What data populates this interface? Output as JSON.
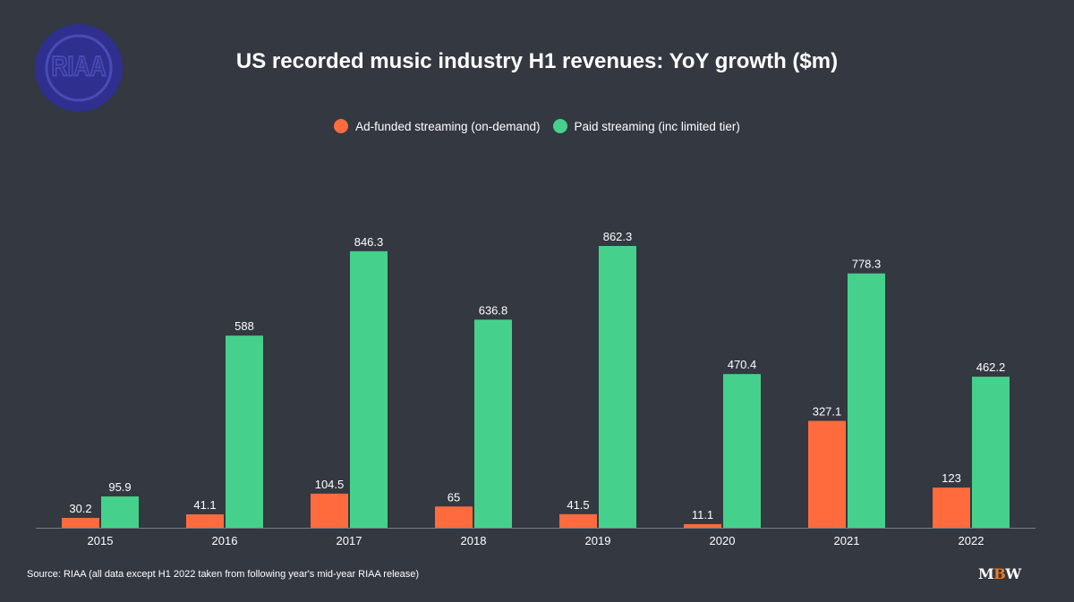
{
  "logo": {
    "text": "RIAA",
    "color": "#2e2f8f",
    "ring_color": "#4a4bb5"
  },
  "colors": {
    "background": "#333841",
    "ad_funded": "#ff6b3d",
    "paid": "#45d18b",
    "axis": "#777c86"
  },
  "brand": {
    "m": "M",
    "b": "B",
    "w": "W"
  },
  "source": "Source: RIAA (all data except H1 2022 taken from following year's mid-year RIAA release)",
  "chart_data": {
    "type": "bar",
    "title": "US recorded music industry H1 revenues: YoY growth ($m)",
    "xlabel": "",
    "ylabel": "",
    "ylim": [
      0,
      900
    ],
    "grid": false,
    "legend_position": "top-center",
    "categories": [
      "2015",
      "2016",
      "2017",
      "2018",
      "2019",
      "2020",
      "2021",
      "2022"
    ],
    "series": [
      {
        "name": "Ad-funded streaming (on-demand)",
        "color": "#ff6b3d",
        "values": [
          30.2,
          41.1,
          104.5,
          65,
          41.5,
          11.1,
          327.1,
          123
        ]
      },
      {
        "name": "Paid streaming (inc limited tier)",
        "color": "#45d18b",
        "values": [
          95.9,
          588,
          846.3,
          636.8,
          862.3,
          470.4,
          778.3,
          462.2
        ]
      }
    ]
  }
}
